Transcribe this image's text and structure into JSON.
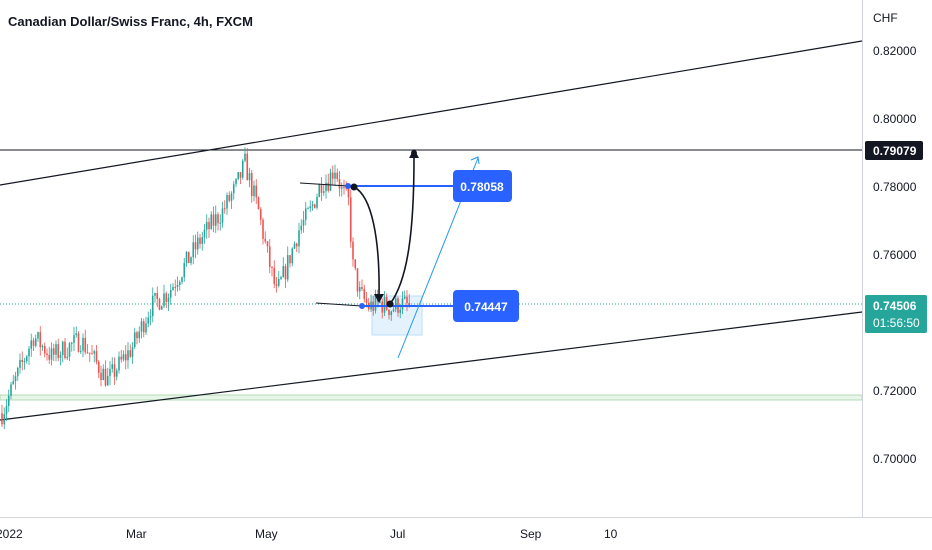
{
  "chart_data": {
    "type": "candlestick",
    "title": "Canadian Dollar/Swiss Franc, 4h, FXCM",
    "currency": "CHF",
    "y_ticks": [
      "0.82000",
      "0.80000",
      "0.78000",
      "0.76000",
      "0.72000",
      "0.70000"
    ],
    "ylim": [
      0.6845,
      0.8255
    ],
    "x_ticks": [
      "2022",
      "Mar",
      "May",
      "Jul",
      "Sep",
      "10"
    ],
    "current_price": "0.74506",
    "countdown": "01:56:50",
    "horizontal_level": "0.79079",
    "label_high": "0.78058",
    "label_low": "0.74447",
    "colors": {
      "up": "#26a69a",
      "down": "#ef5350",
      "trendline": "#131722",
      "accent": "#2962ff",
      "projection": "#2196f3",
      "support_zone": "#c8e6c9",
      "box": "#bbdefb",
      "price_tag": "#26a69a",
      "grid": "#d1d4dc"
    },
    "anchors": [
      {
        "t": 0,
        "p": 0.713
      },
      {
        "t": 6,
        "p": 0.722
      },
      {
        "t": 14,
        "p": 0.734
      },
      {
        "t": 22,
        "p": 0.7285
      },
      {
        "t": 35,
        "p": 0.733
      },
      {
        "t": 47,
        "p": 0.722
      },
      {
        "t": 58,
        "p": 0.731
      },
      {
        "t": 66,
        "p": 0.742
      },
      {
        "t": 74,
        "p": 0.746
      },
      {
        "t": 82,
        "p": 0.754
      },
      {
        "t": 90,
        "p": 0.762
      },
      {
        "t": 98,
        "p": 0.768
      },
      {
        "t": 104,
        "p": 0.7745
      },
      {
        "t": 108,
        "p": 0.781
      },
      {
        "t": 110,
        "p": 0.7765
      },
      {
        "t": 114,
        "p": 0.768
      },
      {
        "t": 118,
        "p": 0.756
      },
      {
        "t": 122,
        "p": 0.7455
      },
      {
        "t": 126,
        "p": 0.752
      },
      {
        "t": 132,
        "p": 0.763
      },
      {
        "t": 137,
        "p": 0.768
      },
      {
        "t": 142,
        "p": 0.776
      },
      {
        "t": 145,
        "p": 0.7765
      },
      {
        "t": 148,
        "p": 0.78
      },
      {
        "t": 151,
        "p": 0.7735
      },
      {
        "t": 154,
        "p": 0.7705
      },
      {
        "t": 156,
        "p": 0.753
      },
      {
        "t": 159,
        "p": 0.7455
      },
      {
        "t": 163,
        "p": 0.742
      },
      {
        "t": 168,
        "p": 0.743
      },
      {
        "t": 173,
        "p": 0.7415
      },
      {
        "t": 177,
        "p": 0.743
      },
      {
        "t": 181,
        "p": 0.742
      }
    ]
  }
}
